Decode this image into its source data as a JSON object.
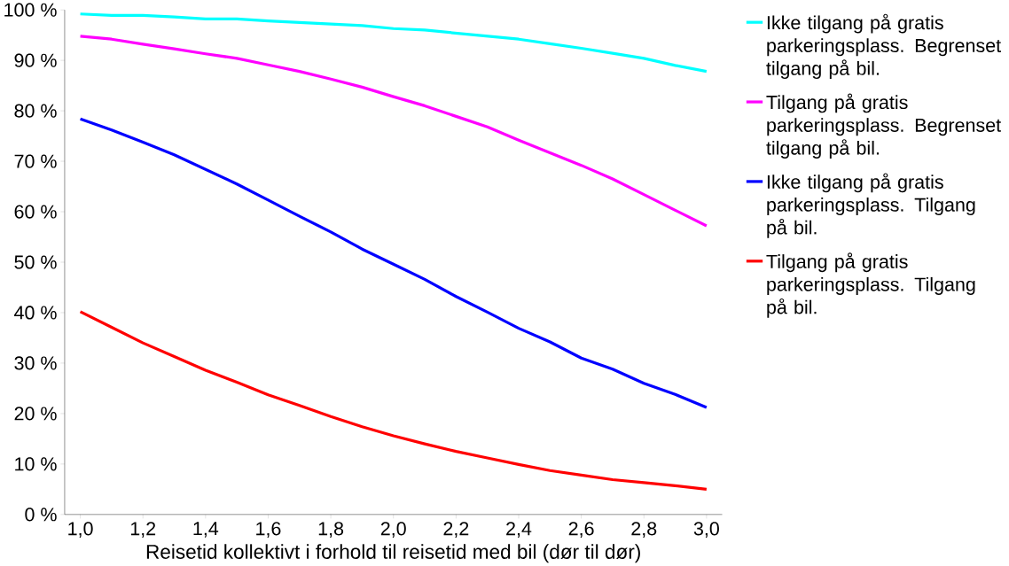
{
  "chart_data": {
    "type": "line",
    "xlabel": "Reisetid kollektivt i forhold til reisetid med bil (dør til dør)",
    "x": [
      1.0,
      1.1,
      1.2,
      1.3,
      1.4,
      1.5,
      1.6,
      1.7,
      1.8,
      1.9,
      2.0,
      2.1,
      2.2,
      2.3,
      2.4,
      2.5,
      2.6,
      2.7,
      2.8,
      2.9,
      3.0
    ],
    "xlim": [
      0.95,
      3.05
    ],
    "xticks": [
      {
        "value": 1.0,
        "label": "1,0"
      },
      {
        "value": 1.2,
        "label": "1,2"
      },
      {
        "value": 1.4,
        "label": "1,4"
      },
      {
        "value": 1.6,
        "label": "1,6"
      },
      {
        "value": 1.8,
        "label": "1,8"
      },
      {
        "value": 2.0,
        "label": "2,0"
      },
      {
        "value": 2.2,
        "label": "2,2"
      },
      {
        "value": 2.4,
        "label": "2,4"
      },
      {
        "value": 2.6,
        "label": "2,6"
      },
      {
        "value": 2.8,
        "label": "2,8"
      },
      {
        "value": 3.0,
        "label": "3,0"
      }
    ],
    "ylim": [
      0,
      100
    ],
    "yticks": [
      {
        "value": 0,
        "label": "0 %"
      },
      {
        "value": 10,
        "label": "10 %"
      },
      {
        "value": 20,
        "label": "20 %"
      },
      {
        "value": 30,
        "label": "30 %"
      },
      {
        "value": 40,
        "label": "40 %"
      },
      {
        "value": 50,
        "label": "50 %"
      },
      {
        "value": 60,
        "label": "60 %"
      },
      {
        "value": 70,
        "label": "70 %"
      },
      {
        "value": 80,
        "label": "80 %"
      },
      {
        "value": 90,
        "label": "90 %"
      },
      {
        "value": 100,
        "label": "100 %"
      }
    ],
    "grid": false,
    "legend": "right",
    "line_style": "solid",
    "series": [
      {
        "name": "Ikke tilgang på gratis parkeringsplass. Begrenset tilgang på bil.",
        "color": "#00ffff",
        "values": [
          99.2,
          98.9,
          98.9,
          98.6,
          98.2,
          98.2,
          97.8,
          97.5,
          97.2,
          96.9,
          96.3,
          96.0,
          95.4,
          94.8,
          94.2,
          93.3,
          92.4,
          91.4,
          90.4,
          89.0,
          87.8
        ]
      },
      {
        "name": "Tilgang på gratis parkeringsplass. Begrenset tilgang på bil.",
        "color": "#ff00ff",
        "values": [
          94.8,
          94.2,
          93.2,
          92.3,
          91.3,
          90.4,
          89.1,
          87.8,
          86.3,
          84.7,
          82.8,
          81.0,
          78.9,
          76.8,
          74.2,
          71.7,
          69.2,
          66.5,
          63.4,
          60.3,
          57.2
        ]
      },
      {
        "name": "Ikke tilgang på gratis parkeringsplass. Tilgang på bil.",
        "color": "#0000ff",
        "values": [
          78.4,
          76.2,
          73.8,
          71.3,
          68.4,
          65.5,
          62.3,
          59.1,
          56.0,
          52.6,
          49.6,
          46.6,
          43.2,
          40.1,
          36.9,
          34.2,
          31.0,
          28.8,
          26.0,
          23.8,
          21.2
        ]
      },
      {
        "name": "Tilgang på gratis parkeringsplass. Tilgang på bil.",
        "color": "#ff0000",
        "values": [
          40.2,
          37.1,
          34.0,
          31.3,
          28.6,
          26.2,
          23.7,
          21.6,
          19.4,
          17.4,
          15.6,
          14.0,
          12.5,
          11.2,
          9.9,
          8.7,
          7.8,
          6.9,
          6.3,
          5.7,
          5.0
        ]
      }
    ]
  }
}
